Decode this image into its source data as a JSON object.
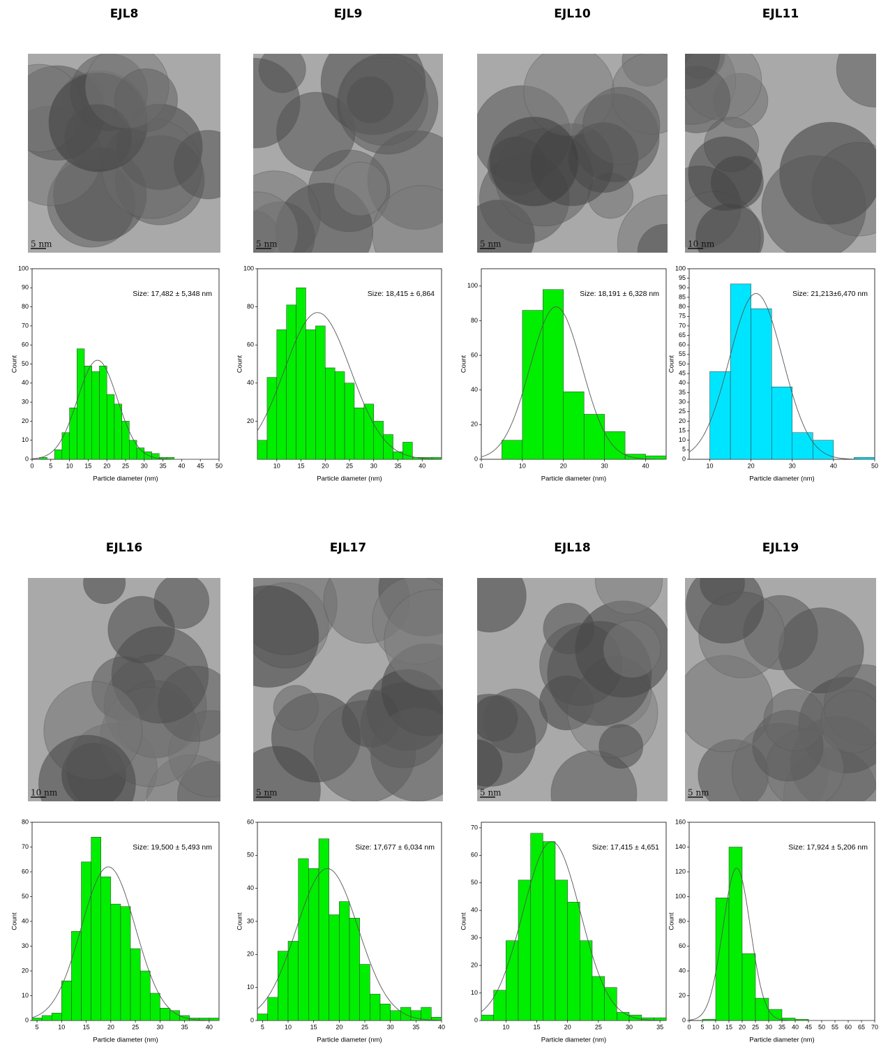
{
  "chart_data": [
    {
      "type": "histogram",
      "title": "EJL8",
      "scale_bar": "5 nm",
      "annotation": "Size: 17,482 ±  5,348 nm",
      "x_label": "Particle diameter (nm)",
      "y_label": "Count",
      "color": "#00ee00",
      "bins": [
        2,
        4,
        6,
        8,
        10,
        12,
        14,
        16,
        18,
        20,
        22,
        24,
        26,
        28,
        30,
        32,
        34,
        36,
        38
      ],
      "values": [
        1,
        0,
        5,
        14,
        27,
        58,
        49,
        46,
        49,
        34,
        29,
        20,
        10,
        6,
        4,
        3,
        1,
        1
      ],
      "fit": {
        "mean": 17.482,
        "sd": 5.348,
        "peak": 52
      },
      "xlim": [
        0,
        50
      ],
      "xticks": [
        0,
        5,
        10,
        15,
        20,
        25,
        30,
        35,
        40,
        45,
        50
      ],
      "ylim": [
        0,
        100
      ],
      "yticks": [
        0,
        10,
        20,
        30,
        40,
        50,
        60,
        70,
        80,
        90,
        100
      ]
    },
    {
      "type": "histogram",
      "title": "EJL9",
      "scale_bar": "5 nm",
      "annotation": "Size: 18,415 ± 6,864",
      "x_label": "Particle diameter (nm)",
      "y_label": "Count",
      "color": "#00ee00",
      "bins": [
        6,
        8,
        10,
        12,
        14,
        16,
        18,
        20,
        22,
        24,
        26,
        28,
        30,
        32,
        34,
        36,
        38,
        40,
        42,
        44
      ],
      "values": [
        10,
        43,
        68,
        81,
        90,
        68,
        70,
        48,
        46,
        40,
        27,
        29,
        20,
        13,
        4,
        9,
        1,
        1,
        1
      ],
      "fit": {
        "mean": 18.415,
        "sd": 6.864,
        "peak": 77
      },
      "xlim": [
        6,
        44
      ],
      "xticks": [
        10,
        15,
        20,
        25,
        30,
        35,
        40
      ],
      "ylim": [
        0,
        100
      ],
      "yticks": [
        20,
        40,
        60,
        80,
        100
      ]
    },
    {
      "type": "histogram",
      "title": "EJL10",
      "scale_bar": "5 nm",
      "annotation": "Size: 18,191 ± 6,328 nm",
      "x_label": "Particle diameter (nm)",
      "y_label": "Count",
      "color": "#00ee00",
      "bins": [
        5,
        10,
        15,
        20,
        25,
        30,
        35,
        40,
        45
      ],
      "values": [
        11,
        86,
        98,
        39,
        26,
        16,
        3,
        2
      ],
      "fit": {
        "mean": 18.191,
        "sd": 6.328,
        "peak": 88
      },
      "xlim": [
        0,
        45
      ],
      "xticks": [
        0,
        10,
        20,
        30,
        40
      ],
      "ylim": [
        0,
        110
      ],
      "yticks": [
        0,
        20,
        40,
        60,
        80,
        100
      ]
    },
    {
      "type": "histogram",
      "title": "EJL11",
      "scale_bar": "10 nm",
      "annotation": "Size: 21,213±6,470 nm",
      "x_label": "Particle diameter (nm)",
      "y_label": "Count",
      "color": "#00e5ff",
      "bins": [
        5,
        10,
        15,
        20,
        25,
        30,
        35,
        40,
        45,
        50
      ],
      "values": [
        0,
        46,
        92,
        79,
        38,
        14,
        10,
        0,
        1
      ],
      "fit": {
        "mean": 21.213,
        "sd": 6.47,
        "peak": 87
      },
      "xlim": [
        5,
        50
      ],
      "xticks": [
        10,
        20,
        30,
        40,
        50
      ],
      "ylim": [
        0,
        100
      ],
      "yticks": [
        0,
        5,
        10,
        15,
        20,
        25,
        30,
        35,
        40,
        45,
        50,
        55,
        60,
        65,
        70,
        75,
        80,
        85,
        90,
        95,
        100
      ]
    },
    {
      "type": "histogram",
      "title": "EJL16",
      "scale_bar": "10 nm",
      "annotation": "Size: 19,500 ± 5,493 nm",
      "x_label": "Particle diameter (nm)",
      "y_label": "Count",
      "color": "#00ee00",
      "bins": [
        4,
        6,
        8,
        10,
        12,
        14,
        16,
        18,
        20,
        22,
        24,
        26,
        28,
        30,
        32,
        34,
        36,
        38,
        40,
        42
      ],
      "values": [
        1,
        2,
        3,
        16,
        36,
        64,
        74,
        58,
        47,
        46,
        29,
        20,
        11,
        5,
        4,
        2,
        1,
        1,
        1
      ],
      "fit": {
        "mean": 19.5,
        "sd": 5.493,
        "peak": 62
      },
      "xlim": [
        4,
        42
      ],
      "xticks": [
        5,
        10,
        15,
        20,
        25,
        30,
        35,
        40
      ],
      "ylim": [
        0,
        80
      ],
      "yticks": [
        0,
        10,
        20,
        30,
        40,
        50,
        60,
        70,
        80
      ]
    },
    {
      "type": "histogram",
      "title": "EJL17",
      "scale_bar": "5 nm",
      "annotation": "Size: 17,677 ± 6,034 nm",
      "x_label": "Particle diameter (nm)",
      "y_label": "Count",
      "color": "#00ee00",
      "bins": [
        4,
        6,
        8,
        10,
        12,
        14,
        16,
        18,
        20,
        22,
        24,
        26,
        28,
        30,
        32,
        34,
        36,
        38,
        40
      ],
      "values": [
        2,
        7,
        21,
        24,
        49,
        46,
        55,
        32,
        36,
        31,
        17,
        8,
        5,
        3,
        4,
        3,
        4,
        1
      ],
      "fit": {
        "mean": 17.677,
        "sd": 6.034,
        "peak": 46
      },
      "xlim": [
        4,
        40
      ],
      "xticks": [
        5,
        10,
        15,
        20,
        25,
        30,
        35,
        40
      ],
      "ylim": [
        0,
        60
      ],
      "yticks": [
        0,
        10,
        20,
        30,
        40,
        50,
        60
      ]
    },
    {
      "type": "histogram",
      "title": "EJL18",
      "scale_bar": "5 nm",
      "annotation": "Size: 17,415 ± 4,651",
      "x_label": "Particle diameter (nm)",
      "y_label": "Count",
      "color": "#00ee00",
      "bins": [
        6,
        8,
        10,
        12,
        14,
        16,
        18,
        20,
        22,
        24,
        26,
        28,
        30,
        32,
        34,
        36
      ],
      "values": [
        2,
        11,
        29,
        51,
        68,
        65,
        51,
        43,
        29,
        16,
        12,
        3,
        2,
        1,
        1
      ],
      "fit": {
        "mean": 17.415,
        "sd": 4.651,
        "peak": 65
      },
      "xlim": [
        6,
        36
      ],
      "xticks": [
        10,
        15,
        20,
        25,
        30,
        35
      ],
      "ylim": [
        0,
        72
      ],
      "yticks": [
        0,
        10,
        20,
        30,
        40,
        50,
        60,
        70
      ]
    },
    {
      "type": "histogram",
      "title": "EJL19",
      "scale_bar": "5 nm",
      "annotation": "Size: 17,924 ± 5,206 nm",
      "x_label": "Particle diameter (nm)",
      "y_label": "Count",
      "color": "#00ee00",
      "bins": [
        5,
        10,
        15,
        20,
        25,
        30,
        35,
        40,
        45
      ],
      "values": [
        1,
        99,
        140,
        54,
        18,
        9,
        2,
        1
      ],
      "fit": {
        "mean": 17.924,
        "sd": 5.206,
        "peak": 123
      },
      "xlim": [
        0,
        70
      ],
      "xticks": [
        0,
        5,
        10,
        15,
        20,
        25,
        30,
        35,
        40,
        45,
        50,
        55,
        60,
        65,
        70
      ],
      "ylim": [
        0,
        160
      ],
      "yticks": [
        0,
        20,
        40,
        60,
        80,
        100,
        120,
        140,
        160
      ]
    }
  ]
}
